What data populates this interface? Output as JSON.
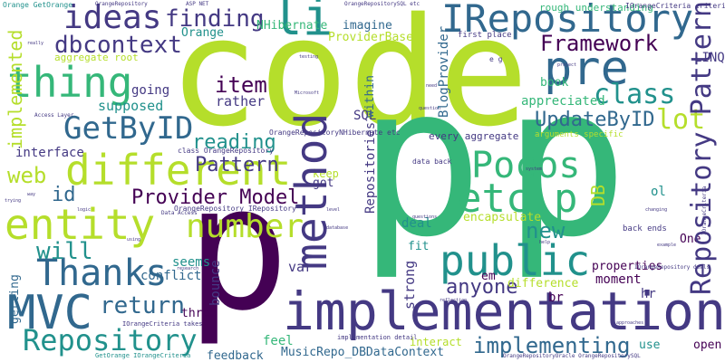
{
  "palette": {
    "lime": "#b5de2b",
    "green": "#35b779",
    "teal": "#21918c",
    "blue": "#31688e",
    "indigo": "#443983",
    "purple": "#440154",
    "yellow": "#fde725"
  },
  "words": {
    "code": "code",
    "p1": "p",
    "p2": "p",
    "p3": "p",
    "implementation": "implementation",
    "different": "different",
    "entity": "entity",
    "thing": "thing",
    "ideas": "ideas",
    "li": "li",
    "irepository": "IRepository",
    "pre": "pre",
    "class": "class",
    "pocos": "Pocos",
    "etc_p": "etc p",
    "public": "public",
    "method": "method",
    "mvc": "MVC",
    "thanks": "Thanks",
    "repository": "Repository",
    "repository_pattern": "Repository Pattern",
    "getbyid": "GetByID",
    "number": "number",
    "dbcontext": "dbcontext",
    "finding": "finding",
    "framework": "Framework",
    "updatebyid": "UpdateByID",
    "lot": "lot",
    "reading": "reading",
    "pattern": "Pattern",
    "provider_model": "Provider Model",
    "web": "web",
    "will": "will",
    "id": "id",
    "return": "return",
    "anyone": "anyone",
    "new": "new",
    "implementing": "implementing",
    "item": "item",
    "rather": "rather",
    "supposed": "supposed",
    "implemented": "implemented",
    "going": "going",
    "appreciated": "appreciated",
    "book": "book",
    "sql": "SQL",
    "linq": "LINQ",
    "nhibernate": "NHibernate",
    "orange": "Orange",
    "imagine": "imagine",
    "providerbase": "ProviderBase",
    "interface": "interface",
    "var": "var",
    "seems": "seems",
    "three": "three",
    "conflict": "conflict",
    "getting": "getting",
    "bounce": "bounce",
    "feel": "feel",
    "feedback": "feedback",
    "musicrepo": "MusicRepo_DBDataContext",
    "interact": "interact",
    "encapsulate": "encapsulate",
    "deal": "deal",
    "fit": "fit",
    "difference": "difference",
    "moment": "moment",
    "strong": "strong",
    "properties": "properties",
    "hr": "hr",
    "br": "br",
    "em": "em",
    "ol": "ol",
    "one": "One",
    "use": "use",
    "open": "open",
    "db": "DB",
    "got": "got",
    "keep": "keep",
    "within": "within",
    "repositories": "Repositories",
    "blogprovider": "BlogProvider",
    "every_aggregate": "every aggregate",
    "rough_understanding": "rough understanding",
    "first_place": "first place",
    "aggregate_root": "aggregate root",
    "orangerepository": "OrangeRepository",
    "class_orangerepository": "class OrangeRepository",
    "orangerepository_irepository": "OrangeRepository IRepository",
    "orangerepository_nhibernate_etc": "OrangeRepositoryNHibernate etc",
    "implementation_detail": "implementation detail",
    "data_back": "data back",
    "back_ends": "back ends",
    "arguments_specific": "arguments specific",
    "ocriteria_criteria": "IOrangeCriteria criteria",
    "orange_getorange": "Orange GetOrange",
    "getorange_iorangecriteria": "GetOrange IOrangeCriteria",
    "iorangecriteria": "IOrangeCriteria",
    "iorangecriteria_takes": "IOrangeCriteria takes",
    "iorangerepository_deals": "IOrangeRepository deals",
    "orangerepositoryoracle": "OrangeRepositoryOracle OrangeRepositorySQL",
    "orangerepositorysql_etc": "OrangeRepositorySQL etc",
    "asp_net": "ASP NET",
    "data_access": "Data Access",
    "access_layer": "Access Layer",
    "e_g": "e g",
    "tiny1": "testing",
    "tiny2": "Microsoft",
    "tiny3": "database",
    "tiny4": "question",
    "tiny5": "changing",
    "tiny6": "example",
    "tiny7": "project",
    "tiny8": "really",
    "tiny9": "need",
    "tiny10": "help",
    "tiny11": "way",
    "tiny12": "trying",
    "tiny13": "logic",
    "tiny14": "using",
    "tiny15": "reflection",
    "tiny16": "approaches",
    "tiny17": "research",
    "tiny18": "level",
    "tiny19": "questions",
    "tiny20": "system"
  }
}
